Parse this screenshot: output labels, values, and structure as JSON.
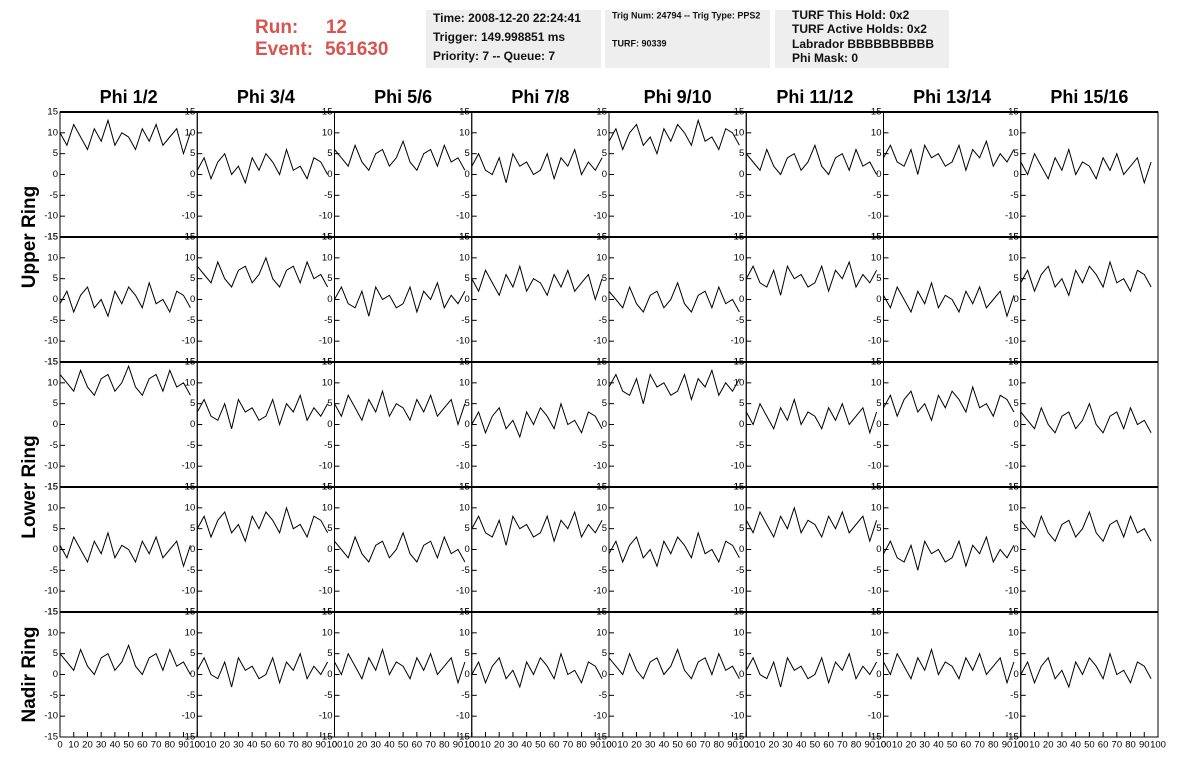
{
  "header": {
    "run_label": "Run:",
    "run": "12",
    "event_label": "Event:",
    "event": "561630",
    "time": "Time: 2008-12-20 22:24:41",
    "trigger": "Trigger: 149.998851 ms",
    "priority": "Priority: 7 -- Queue: 7",
    "trig_num": "Trig Num: 24794 -- Trig Type: PPS2",
    "turf": "TURF: 90339",
    "turf_hold": "TURF This Hold: 0x2",
    "turf_active": "TURF Active Holds: 0x2",
    "labrador": "Labrador BBBBBBBBBB",
    "phi_mask": "Phi Mask: 0"
  },
  "chart_data": {
    "type": "line",
    "color": "#000000",
    "columns": [
      "Phi 1/2",
      "Phi 3/4",
      "Phi 5/6",
      "Phi 7/8",
      "Phi 9/10",
      "Phi 11/12",
      "Phi 13/14",
      "Phi 15/16"
    ],
    "rings": [
      "Upper Ring",
      "Lower Ring",
      "Nadir Ring"
    ],
    "x": [
      0,
      5,
      10,
      15,
      20,
      25,
      30,
      35,
      40,
      45,
      50,
      55,
      60,
      65,
      70,
      75,
      80,
      85,
      90,
      95
    ],
    "xlim": [
      0,
      100
    ],
    "xticks": [
      0,
      10,
      20,
      30,
      40,
      50,
      60,
      70,
      80,
      90,
      100
    ],
    "ylim": [
      -15,
      15
    ],
    "yticks": [
      -15,
      -10,
      -5,
      0,
      5,
      10,
      15
    ],
    "series": [
      {
        "values": [
          10,
          7,
          12,
          9,
          6,
          11,
          8,
          13,
          7,
          10,
          9,
          6,
          11,
          8,
          12,
          7,
          9,
          11,
          5,
          10
        ]
      },
      {
        "values": [
          1,
          4,
          -1,
          3,
          5,
          0,
          2,
          -2,
          4,
          1,
          5,
          3,
          0,
          6,
          1,
          2,
          -1,
          4,
          3,
          0
        ]
      },
      {
        "values": [
          6,
          4,
          2,
          7,
          3,
          1,
          5,
          6,
          2,
          4,
          8,
          3,
          1,
          5,
          6,
          2,
          7,
          3,
          4,
          1
        ]
      },
      {
        "values": [
          2,
          5,
          1,
          0,
          4,
          -2,
          5,
          2,
          3,
          0,
          1,
          5,
          -1,
          4,
          2,
          6,
          0,
          3,
          1,
          4
        ]
      },
      {
        "values": [
          8,
          11,
          6,
          10,
          12,
          7,
          9,
          5,
          11,
          8,
          12,
          10,
          7,
          13,
          8,
          9,
          6,
          11,
          10,
          7
        ]
      },
      {
        "values": [
          5,
          3,
          1,
          6,
          2,
          0,
          4,
          5,
          1,
          3,
          7,
          2,
          0,
          4,
          5,
          1,
          6,
          2,
          3,
          0
        ]
      },
      {
        "values": [
          4,
          7,
          3,
          2,
          6,
          0,
          7,
          4,
          5,
          2,
          3,
          7,
          1,
          6,
          4,
          8,
          2,
          5,
          3,
          6
        ]
      },
      {
        "values": [
          3,
          0,
          5,
          2,
          -1,
          4,
          1,
          6,
          0,
          3,
          2,
          -1,
          4,
          1,
          5,
          0,
          2,
          4,
          -2,
          3
        ]
      },
      {
        "values": [
          -1,
          2,
          -3,
          1,
          3,
          -2,
          0,
          -4,
          2,
          -1,
          3,
          1,
          -2,
          4,
          -1,
          0,
          -3,
          2,
          1,
          -2
        ]
      },
      {
        "values": [
          8,
          6,
          4,
          9,
          5,
          3,
          7,
          8,
          4,
          6,
          10,
          5,
          3,
          7,
          8,
          4,
          9,
          5,
          6,
          3
        ]
      },
      {
        "values": [
          0,
          3,
          -1,
          -2,
          2,
          -4,
          3,
          0,
          1,
          -2,
          -1,
          3,
          -3,
          2,
          0,
          4,
          -2,
          1,
          -1,
          2
        ]
      },
      {
        "values": [
          5,
          2,
          7,
          4,
          1,
          6,
          3,
          8,
          2,
          5,
          4,
          1,
          6,
          3,
          7,
          2,
          4,
          6,
          0,
          5
        ]
      },
      {
        "values": [
          2,
          0,
          -2,
          3,
          -1,
          -3,
          1,
          2,
          -2,
          0,
          4,
          -1,
          -3,
          1,
          2,
          -2,
          3,
          -1,
          0,
          -3
        ]
      },
      {
        "values": [
          5,
          8,
          4,
          3,
          7,
          1,
          8,
          5,
          6,
          3,
          4,
          8,
          2,
          7,
          5,
          9,
          3,
          6,
          4,
          7
        ]
      },
      {
        "values": [
          1,
          -2,
          3,
          0,
          -3,
          2,
          -1,
          4,
          -2,
          1,
          0,
          -3,
          2,
          -1,
          3,
          -2,
          0,
          2,
          -4,
          1
        ]
      },
      {
        "values": [
          4,
          7,
          2,
          6,
          8,
          3,
          5,
          1,
          7,
          4,
          8,
          6,
          3,
          9,
          4,
          5,
          2,
          7,
          6,
          3
        ]
      },
      {
        "values": [
          12,
          10,
          8,
          13,
          9,
          7,
          11,
          12,
          8,
          10,
          14,
          9,
          7,
          11,
          12,
          8,
          13,
          9,
          10,
          7
        ]
      },
      {
        "values": [
          3,
          6,
          2,
          1,
          5,
          -1,
          6,
          3,
          4,
          1,
          2,
          6,
          0,
          5,
          3,
          7,
          1,
          4,
          2,
          5
        ]
      },
      {
        "values": [
          5,
          2,
          7,
          4,
          1,
          6,
          3,
          8,
          2,
          5,
          4,
          1,
          6,
          3,
          7,
          2,
          4,
          6,
          0,
          5
        ]
      },
      {
        "values": [
          0,
          3,
          -2,
          2,
          4,
          -1,
          1,
          -3,
          3,
          0,
          4,
          2,
          -1,
          5,
          0,
          1,
          -2,
          3,
          2,
          -1
        ]
      },
      {
        "values": [
          9,
          12,
          8,
          7,
          11,
          5,
          12,
          9,
          10,
          7,
          8,
          12,
          6,
          11,
          9,
          13,
          7,
          10,
          8,
          11
        ]
      },
      {
        "values": [
          3,
          0,
          5,
          2,
          -1,
          4,
          1,
          6,
          0,
          3,
          2,
          -1,
          4,
          1,
          5,
          0,
          2,
          4,
          -2,
          3
        ]
      },
      {
        "values": [
          4,
          7,
          2,
          6,
          8,
          3,
          5,
          1,
          7,
          4,
          8,
          6,
          3,
          9,
          4,
          5,
          2,
          7,
          6,
          3
        ]
      },
      {
        "values": [
          3,
          1,
          -1,
          4,
          0,
          -2,
          2,
          3,
          -1,
          1,
          5,
          0,
          -2,
          2,
          3,
          -1,
          4,
          0,
          1,
          -2
        ]
      },
      {
        "values": [
          1,
          -2,
          3,
          0,
          -3,
          2,
          -1,
          4,
          -2,
          1,
          0,
          -3,
          2,
          -1,
          3,
          -2,
          0,
          2,
          -4,
          1
        ]
      },
      {
        "values": [
          5,
          8,
          3,
          7,
          9,
          4,
          6,
          2,
          8,
          5,
          9,
          7,
          4,
          10,
          5,
          6,
          3,
          8,
          7,
          4
        ]
      },
      {
        "values": [
          2,
          0,
          -2,
          3,
          -1,
          -3,
          1,
          2,
          -2,
          0,
          4,
          -1,
          -3,
          1,
          2,
          -2,
          3,
          -1,
          0,
          -3
        ]
      },
      {
        "values": [
          5,
          8,
          4,
          3,
          7,
          1,
          8,
          5,
          6,
          3,
          4,
          8,
          2,
          7,
          5,
          9,
          3,
          6,
          4,
          7
        ]
      },
      {
        "values": [
          -1,
          2,
          -3,
          1,
          3,
          -2,
          0,
          -4,
          2,
          -1,
          3,
          1,
          -2,
          4,
          -1,
          0,
          -3,
          2,
          1,
          -2
        ]
      },
      {
        "values": [
          7,
          4,
          9,
          6,
          3,
          8,
          5,
          10,
          4,
          7,
          6,
          3,
          8,
          5,
          9,
          4,
          6,
          8,
          2,
          7
        ]
      },
      {
        "values": [
          -1,
          2,
          -2,
          -3,
          1,
          -5,
          2,
          -1,
          0,
          -3,
          -2,
          2,
          -4,
          1,
          -1,
          3,
          -3,
          0,
          -2,
          1
        ]
      },
      {
        "values": [
          7,
          5,
          3,
          8,
          4,
          2,
          6,
          7,
          3,
          5,
          9,
          4,
          2,
          6,
          7,
          3,
          8,
          4,
          5,
          2
        ]
      },
      {
        "values": [
          5,
          3,
          1,
          6,
          2,
          0,
          4,
          5,
          1,
          3,
          7,
          2,
          0,
          4,
          5,
          1,
          6,
          2,
          3,
          0
        ]
      },
      {
        "values": [
          1,
          4,
          0,
          -1,
          3,
          -3,
          4,
          1,
          2,
          -1,
          0,
          4,
          -2,
          3,
          1,
          5,
          -1,
          2,
          0,
          3
        ]
      },
      {
        "values": [
          3,
          0,
          5,
          2,
          -1,
          4,
          1,
          6,
          0,
          3,
          2,
          -1,
          4,
          1,
          5,
          0,
          2,
          4,
          -2,
          3
        ]
      },
      {
        "values": [
          0,
          3,
          -2,
          2,
          4,
          -1,
          1,
          -3,
          3,
          0,
          4,
          2,
          -1,
          5,
          0,
          1,
          -2,
          3,
          2,
          -1
        ]
      },
      {
        "values": [
          4,
          2,
          0,
          5,
          1,
          -1,
          3,
          4,
          0,
          2,
          6,
          1,
          -1,
          3,
          4,
          0,
          5,
          1,
          2,
          -1
        ]
      },
      {
        "values": [
          1,
          4,
          0,
          -1,
          3,
          -3,
          4,
          1,
          2,
          -1,
          0,
          4,
          -2,
          3,
          1,
          5,
          -1,
          2,
          0,
          3
        ]
      },
      {
        "values": [
          3,
          0,
          5,
          2,
          -1,
          4,
          1,
          6,
          0,
          3,
          2,
          -1,
          4,
          1,
          5,
          0,
          2,
          4,
          -2,
          3
        ]
      },
      {
        "values": [
          0,
          3,
          -2,
          2,
          4,
          -1,
          1,
          -3,
          3,
          0,
          4,
          2,
          -1,
          5,
          0,
          1,
          -2,
          3,
          2,
          -1
        ]
      }
    ]
  }
}
